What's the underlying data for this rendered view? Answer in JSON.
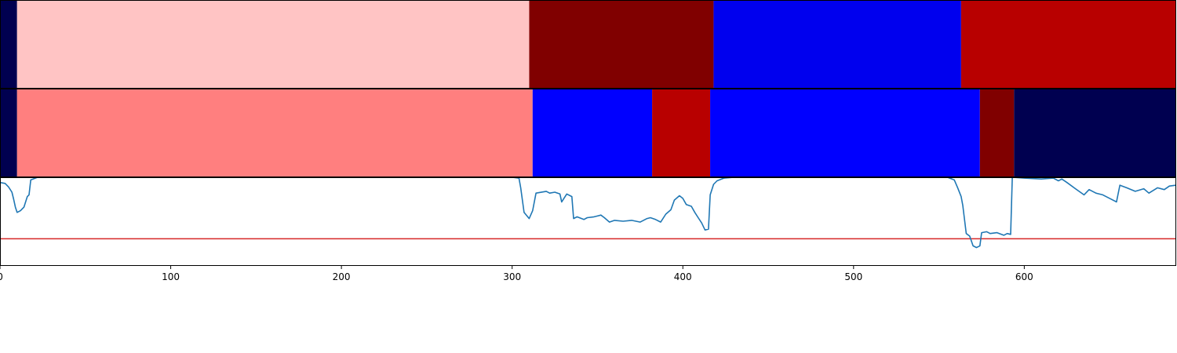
{
  "chart_data": {
    "type": "segmentation-strip-with-line",
    "xlim": [
      0,
      689
    ],
    "x_ticks": [
      {
        "value": 0,
        "label": "0"
      },
      {
        "value": 100,
        "label": "100"
      },
      {
        "value": 200,
        "label": "200"
      },
      {
        "value": 300,
        "label": "300"
      },
      {
        "value": 400,
        "label": "400"
      },
      {
        "value": 500,
        "label": "500"
      },
      {
        "value": 600,
        "label": "600"
      }
    ],
    "strips": [
      {
        "name": "top-strip",
        "segments": [
          {
            "start": 0,
            "end": 10,
            "color": "#000050"
          },
          {
            "start": 10,
            "end": 310,
            "color": "#ffc4c4"
          },
          {
            "start": 310,
            "end": 418,
            "color": "#800000"
          },
          {
            "start": 418,
            "end": 563,
            "color": "#0000ee"
          },
          {
            "start": 563,
            "end": 689,
            "color": "#b80000"
          }
        ]
      },
      {
        "name": "bottom-strip",
        "segments": [
          {
            "start": 0,
            "end": 10,
            "color": "#000050"
          },
          {
            "start": 10,
            "end": 312,
            "color": "#ff7f7f"
          },
          {
            "start": 312,
            "end": 382,
            "color": "#0000ff"
          },
          {
            "start": 382,
            "end": 416,
            "color": "#b80000"
          },
          {
            "start": 416,
            "end": 574,
            "color": "#0000ff"
          },
          {
            "start": 574,
            "end": 594,
            "color": "#800000"
          },
          {
            "start": 594,
            "end": 689,
            "color": "#000050"
          }
        ]
      }
    ],
    "line_panel": {
      "ylim": [
        0,
        1
      ],
      "threshold": 0.3,
      "threshold_color": "#d62728",
      "line_color": "#1f77b4",
      "series": [
        [
          0,
          0.94
        ],
        [
          3,
          0.93
        ],
        [
          5,
          0.89
        ],
        [
          7,
          0.83
        ],
        [
          8,
          0.75
        ],
        [
          9,
          0.66
        ],
        [
          10,
          0.6
        ],
        [
          12,
          0.62
        ],
        [
          14,
          0.66
        ],
        [
          16,
          0.78
        ],
        [
          17,
          0.8
        ],
        [
          18,
          0.97
        ],
        [
          22,
          1.0
        ],
        [
          300,
          1.0
        ],
        [
          304,
          0.99
        ],
        [
          305,
          0.88
        ],
        [
          307,
          0.6
        ],
        [
          310,
          0.53
        ],
        [
          312,
          0.62
        ],
        [
          314,
          0.82
        ],
        [
          320,
          0.84
        ],
        [
          322,
          0.82
        ],
        [
          325,
          0.83
        ],
        [
          328,
          0.81
        ],
        [
          329,
          0.72
        ],
        [
          332,
          0.81
        ],
        [
          335,
          0.78
        ],
        [
          336,
          0.53
        ],
        [
          338,
          0.55
        ],
        [
          342,
          0.52
        ],
        [
          344,
          0.54
        ],
        [
          348,
          0.55
        ],
        [
          352,
          0.57
        ],
        [
          354,
          0.54
        ],
        [
          357,
          0.49
        ],
        [
          360,
          0.51
        ],
        [
          365,
          0.5
        ],
        [
          370,
          0.51
        ],
        [
          375,
          0.49
        ],
        [
          379,
          0.53
        ],
        [
          381,
          0.54
        ],
        [
          384,
          0.52
        ],
        [
          387,
          0.49
        ],
        [
          390,
          0.58
        ],
        [
          393,
          0.63
        ],
        [
          395,
          0.74
        ],
        [
          398,
          0.79
        ],
        [
          400,
          0.76
        ],
        [
          402,
          0.69
        ],
        [
          405,
          0.67
        ],
        [
          407,
          0.6
        ],
        [
          409,
          0.54
        ],
        [
          411,
          0.48
        ],
        [
          413,
          0.4
        ],
        [
          415,
          0.41
        ],
        [
          416,
          0.8
        ],
        [
          418,
          0.92
        ],
        [
          420,
          0.96
        ],
        [
          424,
          0.99
        ],
        [
          430,
          1.0
        ],
        [
          555,
          1.0
        ],
        [
          559,
          0.97
        ],
        [
          561,
          0.88
        ],
        [
          563,
          0.78
        ],
        [
          564,
          0.68
        ],
        [
          566,
          0.36
        ],
        [
          568,
          0.33
        ],
        [
          570,
          0.22
        ],
        [
          572,
          0.2
        ],
        [
          574,
          0.22
        ],
        [
          575,
          0.37
        ],
        [
          578,
          0.38
        ],
        [
          580,
          0.36
        ],
        [
          584,
          0.37
        ],
        [
          588,
          0.34
        ],
        [
          590,
          0.36
        ],
        [
          592,
          0.35
        ],
        [
          593,
          1.0
        ],
        [
          600,
          0.99
        ],
        [
          610,
          0.98
        ],
        [
          617,
          0.99
        ],
        [
          620,
          0.96
        ],
        [
          622,
          0.98
        ],
        [
          625,
          0.94
        ],
        [
          630,
          0.87
        ],
        [
          635,
          0.8
        ],
        [
          638,
          0.86
        ],
        [
          642,
          0.82
        ],
        [
          646,
          0.8
        ],
        [
          650,
          0.76
        ],
        [
          654,
          0.72
        ],
        [
          656,
          0.91
        ],
        [
          660,
          0.88
        ],
        [
          665,
          0.84
        ],
        [
          670,
          0.87
        ],
        [
          673,
          0.82
        ],
        [
          678,
          0.88
        ],
        [
          682,
          0.86
        ],
        [
          685,
          0.9
        ],
        [
          689,
          0.91
        ]
      ]
    }
  }
}
